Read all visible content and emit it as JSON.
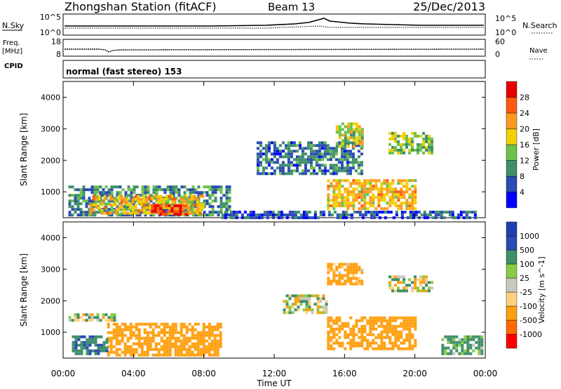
{
  "header": {
    "station": "Zhongshan Station (fitACF)",
    "beam": "Beam 13",
    "date": "25/Dec/2013"
  },
  "strip": {
    "nsky_label": "N.Sky",
    "nsearch_label": "N.Search",
    "nsky_ticks": [
      "10^5",
      "10^0"
    ],
    "nsearch_ticks": [
      "10^5",
      "10^0"
    ],
    "freq_label": "Freq.",
    "freq_unit": "[MHz]",
    "freq_ticks": [
      "18",
      "8"
    ],
    "nave_label": "Nave",
    "nave_ticks": [
      "60",
      "0"
    ],
    "cpid_label": "CPID",
    "cpid_value": "normal (fast stereo) 153"
  },
  "colors": {
    "power_scale": [
      "#0000ff",
      "#2a4bb5",
      "#3f8f6a",
      "#6cc24a",
      "#f0d000",
      "#ff9a20",
      "#ff5a10",
      "#e80000"
    ],
    "velocity_scale": [
      "#ff0000",
      "#ff6a00",
      "#ffa010",
      "#ffd080",
      "#c8c8c0",
      "#88cc44",
      "#3f8f6a",
      "#2a4bb5",
      "#2040b0"
    ]
  },
  "chart_data": [
    {
      "type": "heatmap",
      "panel": "power",
      "ylabel": "Slant Range [km]",
      "ylim": [
        180,
        4500
      ],
      "yticks": [
        "1000",
        "2000",
        "3000",
        "4000"
      ],
      "xlim": [
        0,
        24
      ],
      "colorbar_label": "Power [dB]",
      "colorbar_ticks": [
        "4",
        "8",
        "12",
        "16",
        "20",
        "24",
        "28"
      ],
      "regions": [
        {
          "t0": 0.3,
          "t1": 9.5,
          "r0": 300,
          "r1": 1200,
          "value": 10
        },
        {
          "t0": 1.5,
          "t1": 8.0,
          "r0": 350,
          "r1": 900,
          "value": 20
        },
        {
          "t0": 5.0,
          "t1": 7.0,
          "r0": 300,
          "r1": 600,
          "value": 28
        },
        {
          "t0": 11.0,
          "t1": 17.0,
          "r0": 1600,
          "r1": 2600,
          "value": 8
        },
        {
          "t0": 15.0,
          "t1": 20.0,
          "r0": 500,
          "r1": 1400,
          "value": 20
        },
        {
          "t0": 15.5,
          "t1": 17.0,
          "r0": 2400,
          "r1": 3200,
          "value": 16
        },
        {
          "t0": 18.5,
          "t1": 21.0,
          "r0": 2200,
          "r1": 2900,
          "value": 14
        },
        {
          "t0": 9.0,
          "t1": 23.5,
          "r0": 200,
          "r1": 400,
          "value": 6
        }
      ]
    },
    {
      "type": "heatmap",
      "panel": "velocity",
      "ylabel": "Slant Range [km]",
      "ylim": [
        180,
        4500
      ],
      "yticks": [
        "1000",
        "2000",
        "3000",
        "4000"
      ],
      "xlim": [
        0,
        24
      ],
      "xticks": [
        "00:00",
        "04:00",
        "08:00",
        "12:00",
        "16:00",
        "20:00",
        "00:00"
      ],
      "xlabel": "Time UT",
      "colorbar_label": "Velocity [m s^-1]",
      "colorbar_ticks": [
        "1000",
        "500",
        "100",
        "25",
        "-25",
        "-100",
        "-500",
        "-1000"
      ],
      "regions": [
        {
          "t0": 2.5,
          "t1": 9.0,
          "r0": 300,
          "r1": 1300,
          "value": -300
        },
        {
          "t0": 0.5,
          "t1": 2.5,
          "r0": 300,
          "r1": 900,
          "value": 400
        },
        {
          "t0": 0.3,
          "t1": 3.0,
          "r0": 1400,
          "r1": 1600,
          "value": 0
        },
        {
          "t0": 15.0,
          "t1": 20.0,
          "r0": 500,
          "r1": 1500,
          "value": -300
        },
        {
          "t0": 15.0,
          "t1": 17.0,
          "r0": 2500,
          "r1": 3200,
          "value": -200
        },
        {
          "t0": 18.5,
          "t1": 21.0,
          "r0": 2300,
          "r1": 2800,
          "value": 0
        },
        {
          "t0": 12.5,
          "t1": 15.0,
          "r0": 1600,
          "r1": 2200,
          "value": 10
        },
        {
          "t0": 21.5,
          "t1": 23.8,
          "r0": 300,
          "r1": 900,
          "value": 200
        }
      ]
    }
  ]
}
